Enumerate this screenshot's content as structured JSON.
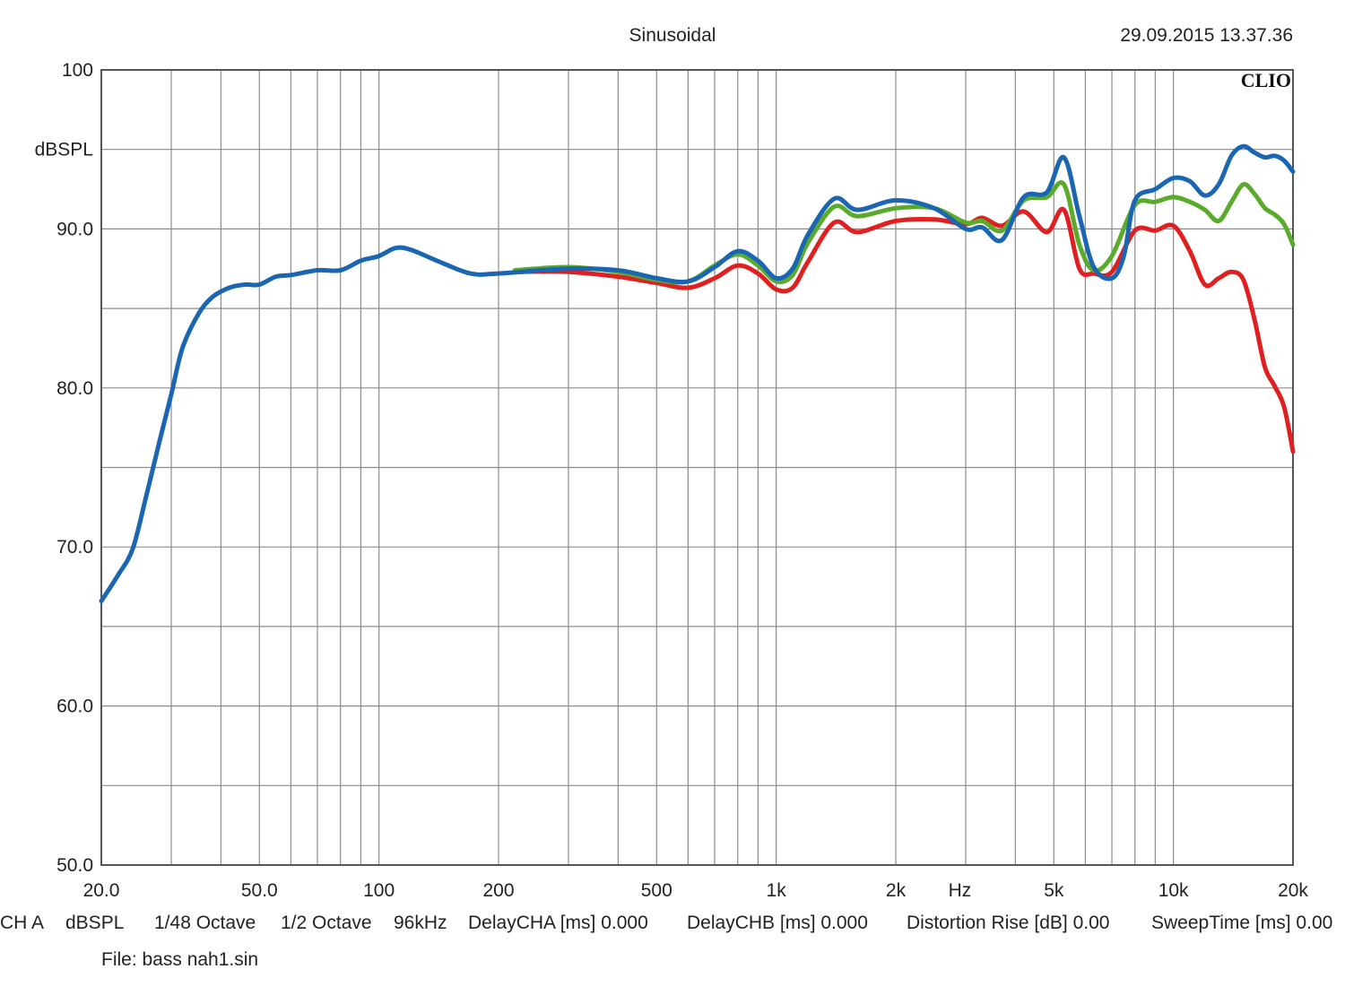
{
  "header": {
    "title": "Sinusoidal",
    "timestamp": "29.09.2015 13.37.36",
    "brand": "CLIO"
  },
  "footer": {
    "channel": "CH A",
    "unit": "dBSPL",
    "resolution": "1/48 Octave",
    "smoothing": "1/2 Octave",
    "sample_rate": "96kHz",
    "delay_cha": "DelayCHA [ms] 0.000",
    "delay_chb": "DelayCHB [ms] 0.000",
    "distortion_rise": "Distortion Rise [dB] 0.00",
    "sweep_time": "SweepTime [ms] 0.00",
    "file": "File: bass nah1.sin"
  },
  "chart_data": {
    "type": "line",
    "title": "Sinusoidal",
    "xlabel": "Hz",
    "ylabel": "dBSPL",
    "xscale": "log",
    "xlim": [
      20,
      20000
    ],
    "ylim": [
      50,
      100
    ],
    "grid": true,
    "x_tick_labels": [
      {
        "value": 20,
        "label": "20.0"
      },
      {
        "value": 50,
        "label": "50.0"
      },
      {
        "value": 100,
        "label": "100"
      },
      {
        "value": 200,
        "label": "200"
      },
      {
        "value": 500,
        "label": "500"
      },
      {
        "value": 1000,
        "label": "1k"
      },
      {
        "value": 2000,
        "label": "2k"
      },
      {
        "value": 5000,
        "label": "5k"
      },
      {
        "value": 10000,
        "label": "10k"
      },
      {
        "value": 20000,
        "label": "20k"
      }
    ],
    "x_unit_label": {
      "value": 2900,
      "label": "Hz"
    },
    "y_tick_labels": [
      {
        "value": 100,
        "label": "100"
      },
      {
        "value": 95,
        "label": "dBSPL"
      },
      {
        "value": 90,
        "label": "90.0"
      },
      {
        "value": 80,
        "label": "80.0"
      },
      {
        "value": 70,
        "label": "70.0"
      },
      {
        "value": 60,
        "label": "60.0"
      },
      {
        "value": 50,
        "label": "50.0"
      }
    ],
    "series": [
      {
        "name": "red",
        "color": "#e02020",
        "x": [
          220,
          300,
          400,
          500,
          600,
          700,
          800,
          900,
          1000,
          1100,
          1200,
          1400,
          1600,
          2000,
          2500,
          3000,
          3300,
          3700,
          4200,
          4800,
          5300,
          5800,
          6300,
          7000,
          8000,
          9000,
          10000,
          11000,
          12000,
          13000,
          14000,
          15000,
          16000,
          17000,
          18000,
          19000,
          20000
        ],
        "y": [
          87.3,
          87.3,
          87.0,
          86.6,
          86.3,
          86.9,
          87.7,
          87.2,
          86.2,
          86.3,
          87.9,
          90.4,
          89.8,
          90.5,
          90.6,
          90.3,
          90.7,
          90.2,
          91.1,
          89.8,
          91.2,
          87.5,
          87.2,
          87.3,
          89.9,
          89.9,
          90.2,
          88.6,
          86.5,
          86.9,
          87.3,
          86.8,
          84.3,
          81.3,
          80.1,
          78.8,
          76.0
        ]
      },
      {
        "name": "green",
        "color": "#5aab2c",
        "x": [
          220,
          300,
          400,
          500,
          600,
          700,
          800,
          900,
          1000,
          1100,
          1200,
          1400,
          1600,
          2000,
          2500,
          3000,
          3300,
          3700,
          4200,
          4800,
          5300,
          5800,
          6300,
          7000,
          8000,
          9000,
          10000,
          11000,
          12000,
          13000,
          14000,
          15000,
          16000,
          17000,
          18000,
          19000,
          20000
        ],
        "y": [
          87.4,
          87.6,
          87.3,
          86.8,
          86.7,
          87.7,
          88.4,
          87.7,
          86.7,
          87.1,
          89.1,
          91.4,
          90.8,
          91.3,
          91.3,
          90.4,
          90.5,
          89.9,
          91.8,
          92.0,
          92.8,
          89.0,
          87.4,
          88.3,
          91.5,
          91.7,
          92.0,
          91.7,
          91.2,
          90.5,
          91.7,
          92.8,
          92.2,
          91.3,
          90.9,
          90.3,
          89.0
        ]
      },
      {
        "name": "blue",
        "color": "#1b66b3",
        "x": [
          20,
          22,
          24,
          26,
          28,
          30,
          32,
          35,
          38,
          42,
          46,
          50,
          55,
          60,
          70,
          80,
          90,
          100,
          110,
          120,
          140,
          170,
          200,
          300,
          400,
          500,
          600,
          700,
          800,
          900,
          1000,
          1100,
          1200,
          1400,
          1600,
          2000,
          2500,
          3000,
          3300,
          3700,
          4200,
          4800,
          5300,
          5800,
          6300,
          7000,
          7500,
          8000,
          9000,
          10000,
          11000,
          12000,
          13000,
          14000,
          15000,
          16000,
          17000,
          18000,
          19000,
          20000
        ],
        "y": [
          66.6,
          68.2,
          69.9,
          73.3,
          76.6,
          79.6,
          82.5,
          84.6,
          85.7,
          86.3,
          86.5,
          86.5,
          87.0,
          87.1,
          87.4,
          87.4,
          88.0,
          88.3,
          88.8,
          88.7,
          88.0,
          87.2,
          87.2,
          87.5,
          87.4,
          86.9,
          86.7,
          87.6,
          88.6,
          88.0,
          86.9,
          87.5,
          89.6,
          91.9,
          91.2,
          91.8,
          91.3,
          90.0,
          90.1,
          89.3,
          92.0,
          92.3,
          94.5,
          90.8,
          87.6,
          86.9,
          88.3,
          91.8,
          92.5,
          93.2,
          93.0,
          92.1,
          92.8,
          94.6,
          95.2,
          94.8,
          94.5,
          94.6,
          94.3,
          93.6
        ]
      }
    ]
  }
}
